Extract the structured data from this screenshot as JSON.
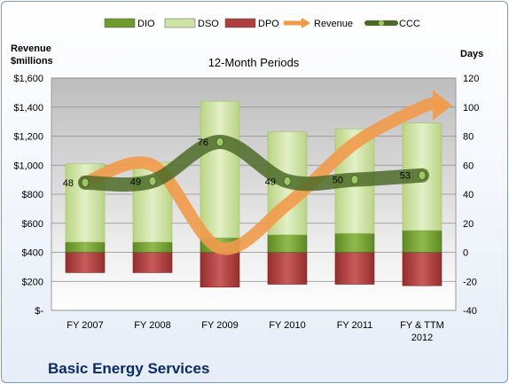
{
  "chart_data": {
    "type": "bar",
    "title": "12-Month Periods",
    "left_axis_title": [
      "Revenue",
      "$millions"
    ],
    "right_axis_title": "Days",
    "company": "Basic Energy Services",
    "categories": [
      [
        "FY 2007"
      ],
      [
        "FY 2008"
      ],
      [
        "FY 2009"
      ],
      [
        "FY 2010"
      ],
      [
        "FY 2011"
      ],
      [
        "FY & TTM",
        "2012"
      ]
    ],
    "left_axis": {
      "min": 0,
      "max": 1600,
      "ticks": [
        0,
        200,
        400,
        600,
        800,
        1000,
        1200,
        1400,
        1600
      ],
      "tick_labels": [
        "$-",
        "$200",
        "$400",
        "$600",
        "$800",
        "$1,000",
        "$1,200",
        "$1,400",
        "$1,600"
      ]
    },
    "right_axis": {
      "min": -40,
      "max": 120,
      "ticks": [
        -40,
        -20,
        0,
        20,
        40,
        60,
        80,
        100,
        120
      ]
    },
    "grid": true,
    "legend_position": "top",
    "series": [
      {
        "name": "DIO",
        "kind": "stacked-bar",
        "axis": "right",
        "color": "#6f9a2e",
        "values": [
          7,
          7,
          10,
          12,
          13,
          15
        ]
      },
      {
        "name": "DSO",
        "kind": "stacked-bar",
        "axis": "right",
        "color": "#cfe3a6",
        "values": [
          54,
          55,
          94,
          71,
          72,
          74
        ]
      },
      {
        "name": "DPO",
        "kind": "negative-bar",
        "axis": "right",
        "color": "#b03e3e",
        "values": [
          -14,
          -14,
          -24,
          -22,
          -22,
          -23
        ]
      },
      {
        "name": "Revenue",
        "kind": "line",
        "axis": "left",
        "color": "#f29a4a",
        "values": [
          880,
          1000,
          430,
          730,
          1150,
          1400
        ]
      },
      {
        "name": "CCC",
        "kind": "line",
        "axis": "right",
        "color": "#4d6b28",
        "values": [
          48,
          49,
          76,
          49,
          50,
          53
        ],
        "labels": [
          "48",
          "49",
          "76",
          "49",
          "50",
          "53"
        ]
      }
    ]
  }
}
